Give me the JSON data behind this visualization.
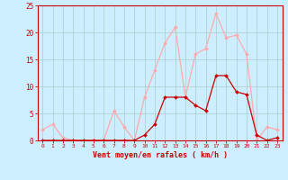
{
  "hours": [
    0,
    1,
    2,
    3,
    4,
    5,
    6,
    7,
    8,
    9,
    10,
    11,
    12,
    13,
    14,
    15,
    16,
    17,
    18,
    19,
    20,
    21,
    22,
    23
  ],
  "rafales": [
    2,
    3,
    0.5,
    0,
    0,
    0,
    0,
    5.5,
    2.5,
    0,
    8,
    13,
    18,
    21,
    8,
    16,
    17,
    23.5,
    19,
    19.5,
    16,
    0,
    2.5,
    2
  ],
  "moyen": [
    0,
    0,
    0,
    0,
    0,
    0,
    0,
    0,
    0,
    0,
    1,
    3,
    8,
    8,
    8,
    6.5,
    5.5,
    12,
    12,
    9,
    8.5,
    1,
    0,
    0.5
  ],
  "color_rafales": "#ffaaaa",
  "color_moyen": "#cc0000",
  "bg_color": "#cceeff",
  "grid_color": "#aacccc",
  "xlabel": "Vent moyen/en rafales ( km/h )",
  "xlabel_color": "#cc0000",
  "tick_color": "#cc0000",
  "ylim": [
    0,
    25
  ],
  "yticks": [
    0,
    5,
    10,
    15,
    20,
    25
  ],
  "ytick_labels": [
    "0",
    "5",
    "10",
    "15",
    "20",
    "25"
  ]
}
